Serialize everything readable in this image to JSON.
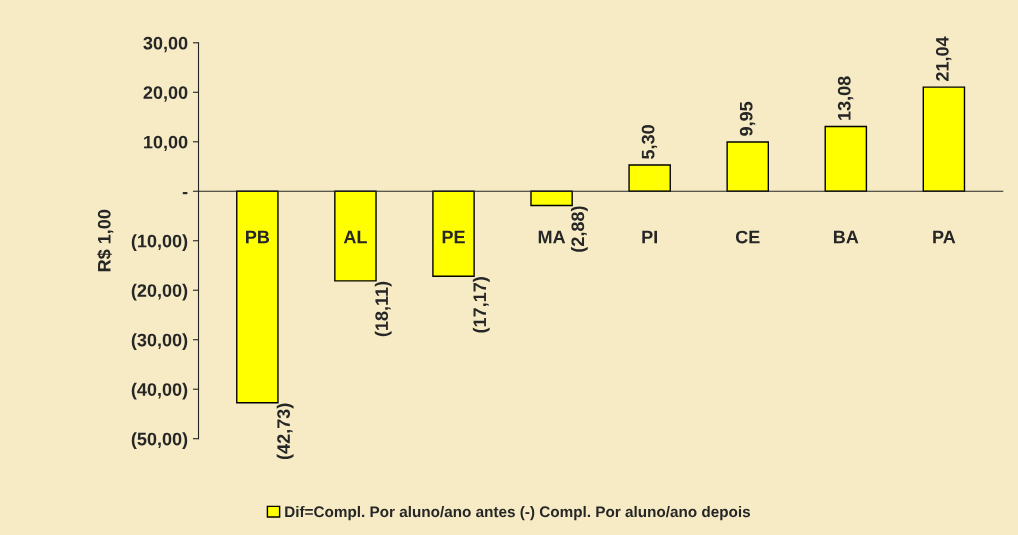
{
  "chart_data": {
    "type": "bar",
    "categories": [
      "PB",
      "AL",
      "PE",
      "MA",
      "PI",
      "CE",
      "BA",
      "PA"
    ],
    "series": [
      {
        "name": "Dif=Compl. Por aluno/ano antes (-) Compl. Por aluno/ano depois",
        "color": "#ffff00",
        "values": [
          -42.73,
          -18.11,
          -17.17,
          -2.88,
          5.3,
          9.95,
          13.08,
          21.04
        ],
        "value_labels": [
          "(42,73)",
          "(18,11)",
          "(17,17)",
          "(2,88)",
          "5,30",
          "9,95",
          "13,08",
          "21,04"
        ]
      }
    ],
    "ylabel": "R$ 1,00",
    "ylim": [
      -50,
      30
    ],
    "yticks": [
      {
        "value": 30,
        "label": "30,00"
      },
      {
        "value": 20,
        "label": "20,00"
      },
      {
        "value": 10,
        "label": "10,00"
      },
      {
        "value": 0,
        "label": "-"
      },
      {
        "value": -10,
        "label": "(10,00)"
      },
      {
        "value": -20,
        "label": "(20,00)"
      },
      {
        "value": -30,
        "label": "(30,00)"
      },
      {
        "value": -40,
        "label": "(40,00)"
      },
      {
        "value": -50,
        "label": "(50,00)"
      }
    ],
    "grid": false,
    "legend": "bottom"
  }
}
